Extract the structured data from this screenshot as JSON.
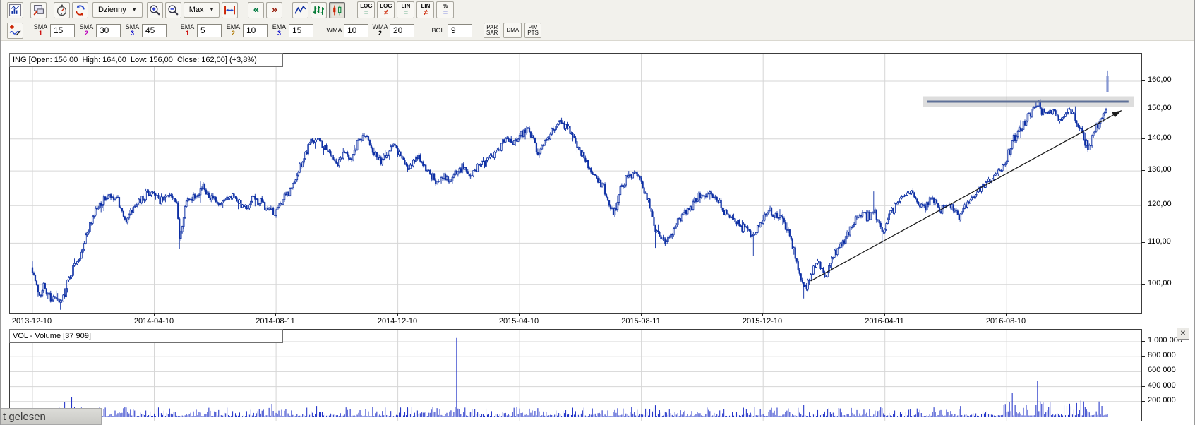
{
  "toolbar": {
    "interval_dropdown": "Dzienny",
    "range_dropdown": "Max",
    "scroll_left": "«",
    "scroll_right": "»",
    "scale_buttons": [
      {
        "top": "LOG",
        "sym": "=",
        "color": "#007a40",
        "name": "log-scale-button"
      },
      {
        "top": "LOG",
        "sym": "≠",
        "color": "#cc2200",
        "name": "log-scale-alt-button"
      },
      {
        "top": "LIN",
        "sym": "=",
        "color": "#007a40",
        "name": "lin-scale-button"
      },
      {
        "top": "LIN",
        "sym": "≠",
        "color": "#cc2200",
        "name": "lin-scale-alt-button"
      },
      {
        "top": "%",
        "sym": "=",
        "color": "#2233cc",
        "name": "percent-scale-button"
      }
    ]
  },
  "indicators": {
    "groups": [
      {
        "label": "SMA",
        "num": "1",
        "color": "#cc0000",
        "value": "15"
      },
      {
        "label": "SMA",
        "num": "2",
        "color": "#bb00bb",
        "value": "30"
      },
      {
        "label": "SMA",
        "num": "3",
        "color": "#0000cc",
        "value": "45"
      },
      {
        "label": "EMA",
        "num": "1",
        "color": "#cc0000",
        "value": "5"
      },
      {
        "label": "EMA",
        "num": "2",
        "color": "#b07800",
        "value": "10"
      },
      {
        "label": "EMA",
        "num": "3",
        "color": "#0000cc",
        "value": "15"
      },
      {
        "label": "WMA",
        "num": "",
        "color": "#000000",
        "value": "10"
      },
      {
        "label": "WMA",
        "num": "2",
        "color": "#000000",
        "value": "20"
      },
      {
        "label": "BOL",
        "num": "",
        "color": "#000000",
        "value": "9"
      }
    ],
    "buttons": [
      {
        "lines": [
          "PAR",
          "SAR"
        ],
        "name": "parabolic-sar-button"
      },
      {
        "lines": [
          "DMA"
        ],
        "name": "dma-button"
      },
      {
        "lines": [
          "PIV",
          "PTS"
        ],
        "name": "pivot-points-button"
      }
    ]
  },
  "price_pane": {
    "title": "ING [Open: 156,00  High: 164,00  Low: 156,00  Close: 162,00] (+3,8%)"
  },
  "volume_pane": {
    "title": "VOL - Volume [37 909]",
    "close_glyph": "✕"
  },
  "overlay": {
    "text": "t gelesen"
  },
  "chart_data": {
    "type": "candlestick",
    "symbol": "ING",
    "interval": "Dzienny",
    "ohlc_header": {
      "open": "156,00",
      "high": "164,00",
      "low": "156,00",
      "close": "162,00",
      "change": "+3,8%"
    },
    "price_axis": {
      "scale": "log",
      "ticks": [
        {
          "v": 160,
          "label": "160,00"
        },
        {
          "v": 150,
          "label": "150,00"
        },
        {
          "v": 140,
          "label": "140,00"
        },
        {
          "v": 130,
          "label": "130,00"
        },
        {
          "v": 120,
          "label": "120,00"
        },
        {
          "v": 110,
          "label": "110,00"
        },
        {
          "v": 100,
          "label": "100,00"
        }
      ]
    },
    "time_axis": {
      "ticks": [
        "2013-12-10",
        "2014-04-10",
        "2014-08-11",
        "2014-12-10",
        "2015-04-10",
        "2015-08-11",
        "2015-12-10",
        "2016-04-11",
        "2016-08-10"
      ]
    },
    "volume_axis": {
      "ticks": [
        {
          "v": 1000000,
          "label": "1 000 000"
        },
        {
          "v": 800000,
          "label": "800 000"
        },
        {
          "v": 600000,
          "label": "600 000"
        },
        {
          "v": 400000,
          "label": "400 000"
        },
        {
          "v": 200000,
          "label": "200 000"
        }
      ],
      "current_volume": 37909
    },
    "series": {
      "start": "2013-12-10",
      "end": "2016-11-18",
      "anchors": [
        [
          "2013-12-10",
          104
        ],
        [
          "2013-12-12",
          100.5
        ],
        [
          "2013-12-17",
          97.5
        ],
        [
          "2013-12-20",
          99.5
        ],
        [
          "2013-12-27",
          97
        ],
        [
          "2014-01-03",
          96
        ],
        [
          "2014-01-08",
          95.8
        ],
        [
          "2014-01-10",
          98.5
        ],
        [
          "2014-01-15",
          101
        ],
        [
          "2014-01-21",
          104.5
        ],
        [
          "2014-01-28",
          108
        ],
        [
          "2014-02-04",
          114
        ],
        [
          "2014-02-11",
          118.5
        ],
        [
          "2014-02-18",
          121
        ],
        [
          "2014-02-25",
          122.5
        ],
        [
          "2014-03-05",
          121
        ],
        [
          "2014-03-12",
          115.5
        ],
        [
          "2014-03-19",
          119
        ],
        [
          "2014-03-26",
          121
        ],
        [
          "2014-04-02",
          123
        ],
        [
          "2014-04-10",
          124
        ],
        [
          "2014-04-16",
          121
        ],
        [
          "2014-04-24",
          123.5
        ],
        [
          "2014-05-02",
          120
        ],
        [
          "2014-05-06",
          112
        ],
        [
          "2014-05-13",
          121
        ],
        [
          "2014-05-21",
          123
        ],
        [
          "2014-05-29",
          125
        ],
        [
          "2014-06-06",
          122
        ],
        [
          "2014-06-13",
          119.5
        ],
        [
          "2014-06-20",
          121.5
        ],
        [
          "2014-06-27",
          123.5
        ],
        [
          "2014-07-04",
          121
        ],
        [
          "2014-07-11",
          118.5
        ],
        [
          "2014-07-18",
          122
        ],
        [
          "2014-07-25",
          120.5
        ],
        [
          "2014-08-01",
          119
        ],
        [
          "2014-08-08",
          117.5
        ],
        [
          "2014-08-15",
          121
        ],
        [
          "2014-08-22",
          124
        ],
        [
          "2014-08-29",
          127.5
        ],
        [
          "2014-09-05",
          133
        ],
        [
          "2014-09-12",
          139
        ],
        [
          "2014-09-19",
          141
        ],
        [
          "2014-09-26",
          137.5
        ],
        [
          "2014-10-03",
          135
        ],
        [
          "2014-10-10",
          132
        ],
        [
          "2014-10-17",
          136
        ],
        [
          "2014-10-24",
          134
        ],
        [
          "2014-10-31",
          139
        ],
        [
          "2014-11-07",
          141
        ],
        [
          "2014-11-14",
          136.5
        ],
        [
          "2014-11-21",
          132.5
        ],
        [
          "2014-11-28",
          135
        ],
        [
          "2014-12-05",
          139
        ],
        [
          "2014-12-12",
          135
        ],
        [
          "2014-12-19",
          130.5
        ],
        [
          "2014-12-23",
          132
        ],
        [
          "2014-12-30",
          134
        ],
        [
          "2015-01-09",
          130
        ],
        [
          "2015-01-16",
          126.5
        ],
        [
          "2015-01-23",
          129
        ],
        [
          "2015-01-30",
          127
        ],
        [
          "2015-02-06",
          130
        ],
        [
          "2015-02-13",
          131
        ],
        [
          "2015-02-20",
          128.5
        ],
        [
          "2015-02-27",
          131
        ],
        [
          "2015-03-06",
          133
        ],
        [
          "2015-03-13",
          135
        ],
        [
          "2015-03-20",
          137
        ],
        [
          "2015-03-27",
          140
        ],
        [
          "2015-04-02",
          139
        ],
        [
          "2015-04-10",
          141
        ],
        [
          "2015-04-17",
          144
        ],
        [
          "2015-04-24",
          140
        ],
        [
          "2015-04-29",
          135
        ],
        [
          "2015-05-08",
          140
        ],
        [
          "2015-05-15",
          144
        ],
        [
          "2015-05-20",
          146.5
        ],
        [
          "2015-05-29",
          143
        ],
        [
          "2015-06-05",
          139
        ],
        [
          "2015-06-12",
          135.5
        ],
        [
          "2015-06-19",
          131
        ],
        [
          "2015-06-26",
          128
        ],
        [
          "2015-07-03",
          125
        ],
        [
          "2015-07-08",
          122
        ],
        [
          "2015-07-14",
          117.5
        ],
        [
          "2015-07-21",
          124
        ],
        [
          "2015-07-28",
          128
        ],
        [
          "2015-08-03",
          130
        ],
        [
          "2015-08-10",
          127
        ],
        [
          "2015-08-17",
          123
        ],
        [
          "2015-08-24",
          115
        ],
        [
          "2015-08-28",
          112
        ],
        [
          "2015-09-04",
          110.5
        ],
        [
          "2015-09-11",
          114
        ],
        [
          "2015-09-18",
          117
        ],
        [
          "2015-09-25",
          119
        ],
        [
          "2015-10-02",
          121
        ],
        [
          "2015-10-09",
          123
        ],
        [
          "2015-10-16",
          124
        ],
        [
          "2015-10-23",
          122
        ],
        [
          "2015-10-30",
          119
        ],
        [
          "2015-11-06",
          117
        ],
        [
          "2015-11-13",
          115
        ],
        [
          "2015-11-20",
          114
        ],
        [
          "2015-11-27",
          112.5
        ],
        [
          "2015-12-04",
          113.5
        ],
        [
          "2015-12-10",
          116
        ],
        [
          "2015-12-16",
          119
        ],
        [
          "2015-12-22",
          117
        ],
        [
          "2015-12-30",
          116
        ],
        [
          "2016-01-06",
          112
        ],
        [
          "2016-01-13",
          106
        ],
        [
          "2016-01-20",
          98.5
        ],
        [
          "2016-01-27",
          102.5
        ],
        [
          "2016-02-03",
          106
        ],
        [
          "2016-02-10",
          101.5
        ],
        [
          "2016-02-17",
          106
        ],
        [
          "2016-02-24",
          109
        ],
        [
          "2016-03-02",
          112
        ],
        [
          "2016-03-09",
          115
        ],
        [
          "2016-03-16",
          118
        ],
        [
          "2016-03-23",
          117
        ],
        [
          "2016-03-31",
          118.5
        ],
        [
          "2016-04-07",
          112.5
        ],
        [
          "2016-04-14",
          117
        ],
        [
          "2016-04-21",
          121
        ],
        [
          "2016-04-28",
          123
        ],
        [
          "2016-05-06",
          123.5
        ],
        [
          "2016-05-13",
          121
        ],
        [
          "2016-05-20",
          119.5
        ],
        [
          "2016-05-27",
          122
        ],
        [
          "2016-06-03",
          118.5
        ],
        [
          "2016-06-10",
          120.5
        ],
        [
          "2016-06-17",
          119
        ],
        [
          "2016-06-24",
          117
        ],
        [
          "2016-06-30",
          120
        ],
        [
          "2016-07-08",
          122.5
        ],
        [
          "2016-07-15",
          125
        ],
        [
          "2016-07-22",
          127
        ],
        [
          "2016-07-29",
          128.5
        ],
        [
          "2016-08-05",
          131
        ],
        [
          "2016-08-10",
          134
        ],
        [
          "2016-08-16",
          139
        ],
        [
          "2016-08-23",
          143
        ],
        [
          "2016-08-31",
          147
        ],
        [
          "2016-09-07",
          151
        ],
        [
          "2016-09-12",
          152
        ],
        [
          "2016-09-16",
          148
        ],
        [
          "2016-09-23",
          150
        ],
        [
          "2016-09-30",
          146
        ],
        [
          "2016-10-07",
          148
        ],
        [
          "2016-10-12",
          150
        ],
        [
          "2016-10-18",
          147
        ],
        [
          "2016-10-21",
          143
        ],
        [
          "2016-10-27",
          139
        ],
        [
          "2016-11-01",
          137.5
        ],
        [
          "2016-11-04",
          141
        ],
        [
          "2016-11-09",
          145
        ],
        [
          "2016-11-11",
          147
        ],
        [
          "2016-11-15",
          149
        ],
        [
          "2016-11-16",
          150
        ],
        [
          "2016-11-17",
          150.5
        ],
        [
          "2016-11-18",
          162
        ]
      ],
      "last_candle": {
        "open": 156,
        "high": 164,
        "low": 156,
        "close": 162
      },
      "wick_events": [
        [
          "2014-01-07",
          94.3,
          "low"
        ],
        [
          "2014-05-06",
          108.5,
          "low"
        ],
        [
          "2014-12-22",
          118.3,
          "low"
        ],
        [
          "2015-08-25",
          108.8,
          "low"
        ],
        [
          "2015-12-01",
          106.9,
          "low"
        ],
        [
          "2016-01-20",
          96.8,
          "low"
        ],
        [
          "2016-03-30",
          124,
          "high"
        ],
        [
          "2016-04-07",
          110,
          "low"
        ]
      ],
      "volume_spikes": [
        [
          "2014-01-10",
          190000
        ],
        [
          "2014-01-17",
          260000
        ],
        [
          "2014-03-12",
          130000
        ],
        [
          "2014-08-06",
          170000
        ],
        [
          "2014-09-19",
          140000
        ],
        [
          "2015-02-06",
          1050000
        ],
        [
          "2015-08-25",
          150000
        ],
        [
          "2016-01-20",
          160000
        ],
        [
          "2016-06-24",
          140000
        ],
        [
          "2016-08-16",
          320000
        ],
        [
          "2016-09-09",
          480000
        ],
        [
          "2016-10-19",
          180000
        ],
        [
          "2016-11-10",
          200000
        ]
      ]
    },
    "annotations": {
      "trendline": {
        "from": [
          "2016-01-27",
          100.8
        ],
        "to": [
          "2016-12-02",
          149.5
        ],
        "color": "#1c1c1c",
        "arrow": true
      },
      "resistance": {
        "price": 152.6,
        "from": "2016-05-23",
        "to": "2016-12-05",
        "color": "#5f7198",
        "halo": true
      }
    },
    "colors": {
      "candle": "#0d2fa4",
      "volume": "#2334c8",
      "grid": "#d6d6d6"
    }
  }
}
